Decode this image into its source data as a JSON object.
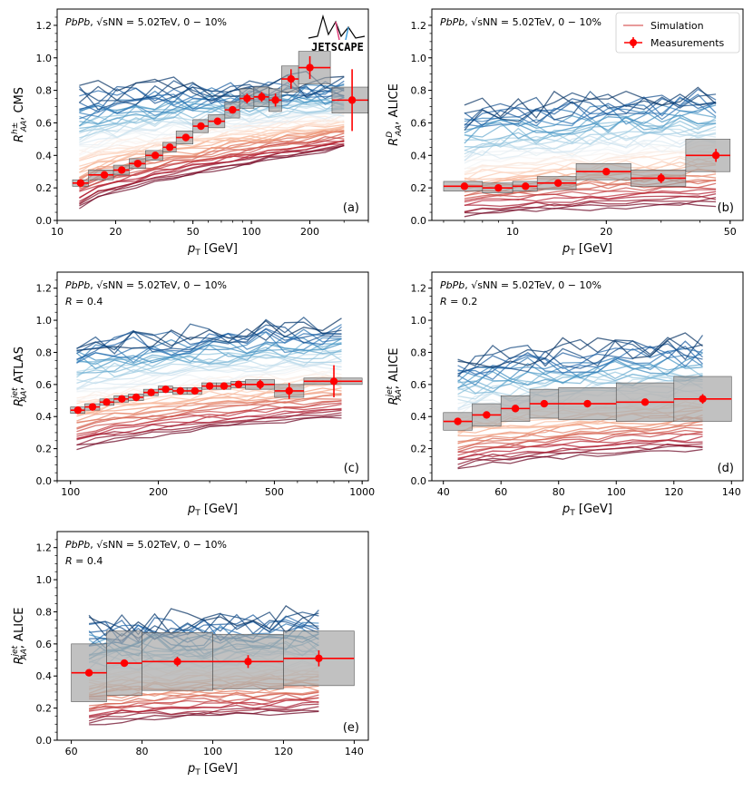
{
  "figure": {
    "legend": {
      "simulation": "Simulation",
      "measurements": "Measurements"
    },
    "logo": "JETSCAPE"
  },
  "colors": {
    "measurement": "#ff0000",
    "box_fill": "#a0a0a0",
    "sim_palette": [
      "#67001f",
      "#b2182b",
      "#d6604d",
      "#f4a582",
      "#fddbc7",
      "#f7f7f7",
      "#d1e5f0",
      "#92c5de",
      "#4393c3",
      "#2166ac",
      "#053061"
    ]
  },
  "chart_data": [
    {
      "id": "a",
      "type": "line",
      "panel_label": "(a)",
      "title": "PbPb, √sNN = 5.02TeV, 0−10%",
      "xlabel": "pT [GeV]",
      "ylabel": "R_AA^h±, CMS",
      "xscale": "log",
      "xlim": [
        10,
        400
      ],
      "ylim": [
        0,
        1.3
      ],
      "xticks": [
        10,
        20,
        50,
        100,
        200
      ],
      "xtick_labels": [
        "10",
        "20",
        "50",
        "100",
        "200"
      ],
      "yticks": [
        0.0,
        0.2,
        0.4,
        0.6,
        0.8,
        1.0,
        1.2
      ],
      "ytick_labels": [
        "0.0",
        "0.2",
        "0.4",
        "0.6",
        "0.8",
        "1.0",
        "1.2"
      ],
      "sim_x_range": [
        13,
        300
      ],
      "sim_y_low": [
        0.08,
        0.45
      ],
      "sim_y_high": [
        0.78,
        0.85
      ],
      "sim_curves": 60,
      "measurements": {
        "x": [
          13.2,
          17.5,
          21.5,
          26,
          32,
          38,
          46,
          55,
          67,
          80,
          95,
          113,
          133,
          160,
          200,
          330
        ],
        "y": [
          0.23,
          0.28,
          0.31,
          0.35,
          0.4,
          0.45,
          0.51,
          0.58,
          0.61,
          0.68,
          0.75,
          0.76,
          0.74,
          0.87,
          0.94,
          0.74
        ],
        "xerr_lo": [
          12,
          14.5,
          19.5,
          23.5,
          28.5,
          35,
          41,
          50,
          60,
          73,
          87,
          103,
          123,
          143,
          175,
          260
        ],
        "xerr_hi": [
          14.5,
          19.5,
          23.5,
          28.5,
          35,
          41,
          50,
          60,
          73,
          87,
          103,
          123,
          143,
          175,
          255,
          400
        ],
        "yerr": [
          0.02,
          0.02,
          0.02,
          0.02,
          0.02,
          0.02,
          0.02,
          0.02,
          0.02,
          0.02,
          0.03,
          0.03,
          0.04,
          0.06,
          0.07,
          0.19
        ],
        "syst": [
          0.02,
          0.03,
          0.03,
          0.03,
          0.03,
          0.03,
          0.04,
          0.04,
          0.04,
          0.05,
          0.06,
          0.06,
          0.07,
          0.08,
          0.1,
          0.08
        ]
      }
    },
    {
      "id": "b",
      "type": "line",
      "panel_label": "(b)",
      "title": "PbPb, √sNN = 5.02TeV, 0−10%",
      "xlabel": "pT [GeV]",
      "ylabel": "R_AA^D, ALICE",
      "xscale": "log",
      "xlim": [
        5.5,
        55
      ],
      "ylim": [
        0,
        1.3
      ],
      "xticks": [
        10,
        20,
        50
      ],
      "xtick_labels": [
        "10",
        "20",
        "50"
      ],
      "yticks": [
        0.0,
        0.2,
        0.4,
        0.6,
        0.8,
        1.0,
        1.2
      ],
      "ytick_labels": [
        "0.0",
        "0.2",
        "0.4",
        "0.6",
        "0.8",
        "1.0",
        "1.2"
      ],
      "sim_x_range": [
        7,
        45
      ],
      "sim_y_low": [
        0.03,
        0.1
      ],
      "sim_y_high": [
        0.65,
        0.8
      ],
      "sim_curves": 50,
      "measurements": {
        "x": [
          7,
          9,
          11,
          14,
          20,
          30,
          45
        ],
        "y": [
          0.21,
          0.2,
          0.21,
          0.23,
          0.3,
          0.26,
          0.4
        ],
        "xerr_lo": [
          6,
          8,
          10,
          12,
          16,
          24,
          36
        ],
        "xerr_hi": [
          8,
          10,
          12,
          16,
          24,
          36,
          50
        ],
        "yerr": [
          0.02,
          0.02,
          0.02,
          0.02,
          0.02,
          0.03,
          0.04
        ],
        "syst": [
          0.03,
          0.03,
          0.03,
          0.04,
          0.05,
          0.05,
          0.1
        ]
      }
    },
    {
      "id": "c",
      "type": "line",
      "panel_label": "(c)",
      "title": "PbPb, √sNN = 5.02TeV, 0−10%",
      "subtitle": "R = 0.4",
      "xlabel": "pT [GeV]",
      "ylabel": "R_AA^jet, ATLAS",
      "xscale": "log",
      "xlim": [
        90,
        1050
      ],
      "ylim": [
        0,
        1.3
      ],
      "xticks": [
        100,
        200,
        500,
        1000
      ],
      "xtick_labels": [
        "100",
        "200",
        "500",
        "1000"
      ],
      "yticks": [
        0.0,
        0.2,
        0.4,
        0.6,
        0.8,
        1.0,
        1.2
      ],
      "ytick_labels": [
        "0.0",
        "0.2",
        "0.4",
        "0.6",
        "0.8",
        "1.0",
        "1.2"
      ],
      "sim_x_range": [
        105,
        850
      ],
      "sim_y_low": [
        0.2,
        0.4
      ],
      "sim_y_high": [
        0.87,
        0.98
      ],
      "sim_curves": 50,
      "measurements": {
        "x": [
          106,
          119,
          133,
          150,
          168,
          189,
          212,
          238,
          267,
          300,
          336,
          377,
          447,
          562,
          800
        ],
        "y": [
          0.44,
          0.46,
          0.49,
          0.51,
          0.52,
          0.55,
          0.57,
          0.56,
          0.56,
          0.59,
          0.59,
          0.6,
          0.6,
          0.56,
          0.62
        ],
        "xerr_lo": [
          100,
          112,
          126,
          141,
          158,
          178,
          200,
          224,
          251,
          282,
          316,
          355,
          398,
          501,
          631
        ],
        "xerr_hi": [
          112,
          126,
          141,
          158,
          178,
          200,
          224,
          251,
          282,
          316,
          355,
          398,
          501,
          631,
          1000
        ],
        "yerr": [
          0.01,
          0.01,
          0.01,
          0.01,
          0.01,
          0.01,
          0.01,
          0.01,
          0.01,
          0.01,
          0.01,
          0.02,
          0.03,
          0.05,
          0.1
        ],
        "syst": [
          0.02,
          0.02,
          0.02,
          0.02,
          0.02,
          0.02,
          0.02,
          0.02,
          0.02,
          0.02,
          0.02,
          0.02,
          0.03,
          0.04,
          0.02
        ]
      }
    },
    {
      "id": "d",
      "type": "line",
      "panel_label": "(d)",
      "title": "PbPb, √sNN = 5.02TeV, 0−10%",
      "subtitle": "R = 0.2",
      "xlabel": "pT [GeV]",
      "ylabel": "R_AA^jet, ALICE",
      "xscale": "linear",
      "xlim": [
        36,
        144
      ],
      "ylim": [
        0,
        1.3
      ],
      "xticks": [
        40,
        60,
        80,
        100,
        120,
        140
      ],
      "xtick_labels": [
        "40",
        "60",
        "80",
        "100",
        "120",
        "140"
      ],
      "yticks": [
        0.0,
        0.2,
        0.4,
        0.6,
        0.8,
        1.0,
        1.2
      ],
      "ytick_labels": [
        "0.0",
        "0.2",
        "0.4",
        "0.6",
        "0.8",
        "1.0",
        "1.2"
      ],
      "sim_x_range": [
        45,
        130
      ],
      "sim_y_low": [
        0.08,
        0.2
      ],
      "sim_y_high": [
        0.75,
        0.86
      ],
      "sim_curves": 50,
      "measurements": {
        "x": [
          45,
          55,
          65,
          75,
          90,
          110,
          130
        ],
        "y": [
          0.37,
          0.41,
          0.45,
          0.48,
          0.48,
          0.49,
          0.51
        ],
        "xerr_lo": [
          40,
          50,
          60,
          70,
          80,
          100,
          120
        ],
        "xerr_hi": [
          50,
          60,
          70,
          80,
          100,
          120,
          140
        ],
        "yerr": [
          0.02,
          0.02,
          0.02,
          0.02,
          0.02,
          0.02,
          0.03
        ],
        "syst": [
          0.055,
          0.07,
          0.08,
          0.09,
          0.1,
          0.12,
          0.14
        ]
      }
    },
    {
      "id": "e",
      "type": "line",
      "panel_label": "(e)",
      "title": "PbPb, √sNN = 5.02TeV, 0−10%",
      "subtitle": "R = 0.4",
      "xlabel": "pT [GeV]",
      "ylabel": "R_AA^jet, ALICE",
      "xscale": "linear",
      "xlim": [
        56,
        144
      ],
      "ylim": [
        0,
        1.3
      ],
      "xticks": [
        60,
        80,
        100,
        120,
        140
      ],
      "xtick_labels": [
        "60",
        "80",
        "100",
        "120",
        "140"
      ],
      "yticks": [
        0.0,
        0.2,
        0.4,
        0.6,
        0.8,
        1.0,
        1.2
      ],
      "ytick_labels": [
        "0.0",
        "0.2",
        "0.4",
        "0.6",
        "0.8",
        "1.0",
        "1.2"
      ],
      "sim_x_range": [
        65,
        130
      ],
      "sim_y_low": [
        0.1,
        0.18
      ],
      "sim_y_high": [
        0.72,
        0.77
      ],
      "sim_curves": 50,
      "measurements": {
        "x": [
          65,
          75,
          90,
          110,
          130
        ],
        "y": [
          0.42,
          0.48,
          0.49,
          0.49,
          0.51
        ],
        "xerr_lo": [
          60,
          70,
          80,
          100,
          120
        ],
        "xerr_hi": [
          70,
          80,
          100,
          120,
          140
        ],
        "yerr": [
          0.02,
          0.02,
          0.03,
          0.04,
          0.05
        ],
        "syst": [
          0.18,
          0.2,
          0.18,
          0.17,
          0.17
        ]
      }
    }
  ]
}
